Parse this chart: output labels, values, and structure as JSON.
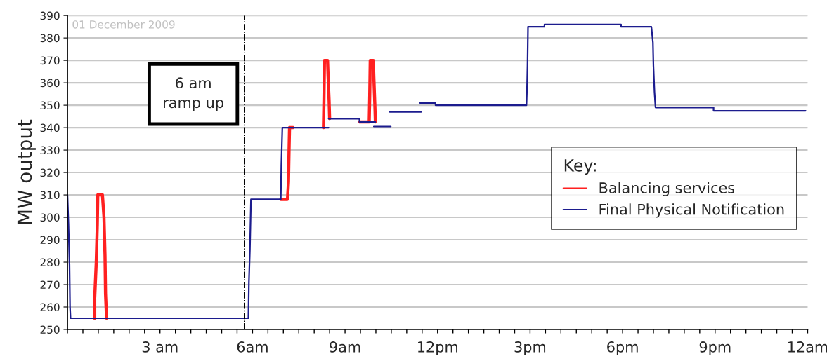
{
  "chart_data": {
    "type": "line",
    "ylabel": "MW output",
    "legend_title": "Key:",
    "annotations": [
      "01 December 2009",
      "6 am\nramp up"
    ],
    "series": [
      {
        "name": "Balancing services",
        "color": "#ff2020",
        "x": [
          "2009-12-01T00:53",
          "2009-12-01T00:53",
          "2009-12-01T00:56",
          "2009-12-01T00:58",
          "2009-12-01T00:59",
          "2009-12-01T01:08",
          "2009-12-01T01:11",
          "2009-12-01T01:13",
          "2009-12-01T01:14",
          "2009-12-01T01:16",
          null,
          "2009-12-01T06:55",
          "2009-12-01T07:08",
          "2009-12-01T07:10",
          "2009-12-01T07:11",
          "2009-12-01T07:12",
          "2009-12-01T07:19",
          null,
          "2009-12-01T08:18",
          "2009-12-01T08:19",
          "2009-12-01T08:20",
          "2009-12-01T08:26",
          "2009-12-01T08:27",
          "2009-12-01T08:29",
          "2009-12-01T08:30",
          null,
          "2009-12-01T09:28",
          "2009-12-01T09:47",
          "2009-12-01T09:48",
          "2009-12-01T09:49",
          "2009-12-01T09:55",
          "2009-12-01T09:56",
          "2009-12-01T09:58",
          "2009-12-01T09:59"
        ],
        "values": [
          255,
          264,
          280,
          296.5,
          310,
          310,
          300,
          283,
          266,
          255,
          null,
          308,
          308,
          316,
          329,
          340,
          340,
          null,
          340,
          353,
          370,
          370,
          363,
          352,
          344,
          null,
          342.5,
          342.5,
          354,
          370,
          370,
          362.5,
          350,
          342.5
        ]
      },
      {
        "name": "Final Physical Notification",
        "color": "#1c1c8e",
        "x": [
          "2009-12-01T00:00",
          "2009-12-01T00:02",
          "2009-12-01T00:04",
          "2009-12-01T00:05",
          "2009-12-01T00:06",
          "2009-12-01T05:52",
          "2009-12-01T05:53",
          "2009-12-01T05:55",
          "2009-12-01T05:57",
          "2009-12-01T06:55",
          "2009-12-01T06:56",
          "2009-12-01T06:58",
          "2009-12-01T08:28",
          null,
          "2009-12-01T08:28",
          "2009-12-01T09:28",
          "2009-12-01T09:28",
          "2009-12-01T09:59",
          null,
          "2009-12-01T09:56",
          "2009-12-01T10:29",
          null,
          "2009-12-01T10:27",
          "2009-12-01T11:28",
          null,
          "2009-12-01T11:26",
          "2009-12-01T11:56",
          "2009-12-01T11:56",
          "2009-12-01T14:53",
          "2009-12-01T14:54",
          "2009-12-01T14:55",
          "2009-12-01T14:56",
          "2009-12-01T15:28",
          "2009-12-01T15:28",
          "2009-12-01T17:57",
          "2009-12-01T17:57",
          "2009-12-01T18:56",
          "2009-12-01T18:59",
          "2009-12-01T19:00",
          "2009-12-01T19:02",
          "2009-12-01T19:04",
          "2009-12-01T20:57",
          "2009-12-01T20:57",
          "2009-12-01T23:56"
        ],
        "values": [
          310,
          297,
          279,
          260,
          255,
          255,
          271,
          286,
          308,
          308,
          323,
          340,
          340,
          null,
          344,
          344,
          342.5,
          342.5,
          null,
          340.5,
          340.5,
          null,
          347,
          347,
          null,
          351,
          351,
          350,
          350,
          357,
          368,
          385,
          385,
          386,
          386,
          385,
          385,
          378,
          367.5,
          356,
          349,
          349,
          347.5,
          347.5
        ]
      }
    ],
    "xlim": [
      "2009-12-01T00:00",
      "2009-12-02T00:00"
    ],
    "xticks": [
      {
        "value": "2009-12-01T00:00",
        "label": null
      },
      {
        "value": "2009-12-01T00:30",
        "label": null
      },
      {
        "value": "2009-12-01T01:00",
        "label": null
      },
      {
        "value": "2009-12-01T01:30",
        "label": null
      },
      {
        "value": "2009-12-01T02:00",
        "label": null
      },
      {
        "value": "2009-12-01T02:30",
        "label": null
      },
      {
        "value": "2009-12-01T03:00",
        "label": "3 am"
      },
      {
        "value": "2009-12-01T03:30",
        "label": null
      },
      {
        "value": "2009-12-01T04:00",
        "label": null
      },
      {
        "value": "2009-12-01T04:30",
        "label": null
      },
      {
        "value": "2009-12-01T05:00",
        "label": null
      },
      {
        "value": "2009-12-01T05:30",
        "label": null
      },
      {
        "value": "2009-12-01T06:00",
        "label": "6am"
      },
      {
        "value": "2009-12-01T06:30",
        "label": null
      },
      {
        "value": "2009-12-01T07:00",
        "label": null
      },
      {
        "value": "2009-12-01T07:30",
        "label": null
      },
      {
        "value": "2009-12-01T08:00",
        "label": null
      },
      {
        "value": "2009-12-01T08:30",
        "label": null
      },
      {
        "value": "2009-12-01T09:00",
        "label": "9am"
      },
      {
        "value": "2009-12-01T09:30",
        "label": null
      },
      {
        "value": "2009-12-01T10:00",
        "label": null
      },
      {
        "value": "2009-12-01T10:30",
        "label": null
      },
      {
        "value": "2009-12-01T11:00",
        "label": null
      },
      {
        "value": "2009-12-01T11:30",
        "label": null
      },
      {
        "value": "2009-12-01T12:00",
        "label": "12pm"
      },
      {
        "value": "2009-12-01T12:30",
        "label": null
      },
      {
        "value": "2009-12-01T13:00",
        "label": null
      },
      {
        "value": "2009-12-01T13:30",
        "label": null
      },
      {
        "value": "2009-12-01T14:00",
        "label": null
      },
      {
        "value": "2009-12-01T14:30",
        "label": null
      },
      {
        "value": "2009-12-01T15:00",
        "label": "3pm"
      },
      {
        "value": "2009-12-01T15:30",
        "label": null
      },
      {
        "value": "2009-12-01T16:00",
        "label": null
      },
      {
        "value": "2009-12-01T16:30",
        "label": null
      },
      {
        "value": "2009-12-01T17:00",
        "label": null
      },
      {
        "value": "2009-12-01T17:30",
        "label": null
      },
      {
        "value": "2009-12-01T18:00",
        "label": "6pm"
      },
      {
        "value": "2009-12-01T18:30",
        "label": null
      },
      {
        "value": "2009-12-01T19:00",
        "label": null
      },
      {
        "value": "2009-12-01T19:30",
        "label": null
      },
      {
        "value": "2009-12-01T20:00",
        "label": null
      },
      {
        "value": "2009-12-01T20:30",
        "label": null
      },
      {
        "value": "2009-12-01T21:00",
        "label": "9pm"
      },
      {
        "value": "2009-12-01T21:30",
        "label": null
      },
      {
        "value": "2009-12-01T22:00",
        "label": null
      },
      {
        "value": "2009-12-01T22:30",
        "label": null
      },
      {
        "value": "2009-12-01T23:00",
        "label": null
      },
      {
        "value": "2009-12-01T23:30",
        "label": null
      },
      {
        "value": "2009-12-02T00:00",
        "label": "12am"
      }
    ],
    "ylim": [
      250,
      390
    ],
    "yticks": [
      250,
      260,
      270,
      280,
      290,
      300,
      310,
      320,
      330,
      340,
      350,
      360,
      370,
      380,
      390
    ],
    "ref_lines": [
      {
        "axis": "x",
        "value": "2009-12-01T05:44",
        "color": "#000000",
        "line_style": "dashdot"
      }
    ],
    "grid": "y",
    "legend": "center right",
    "marker": "none",
    "line_style": "solid"
  }
}
